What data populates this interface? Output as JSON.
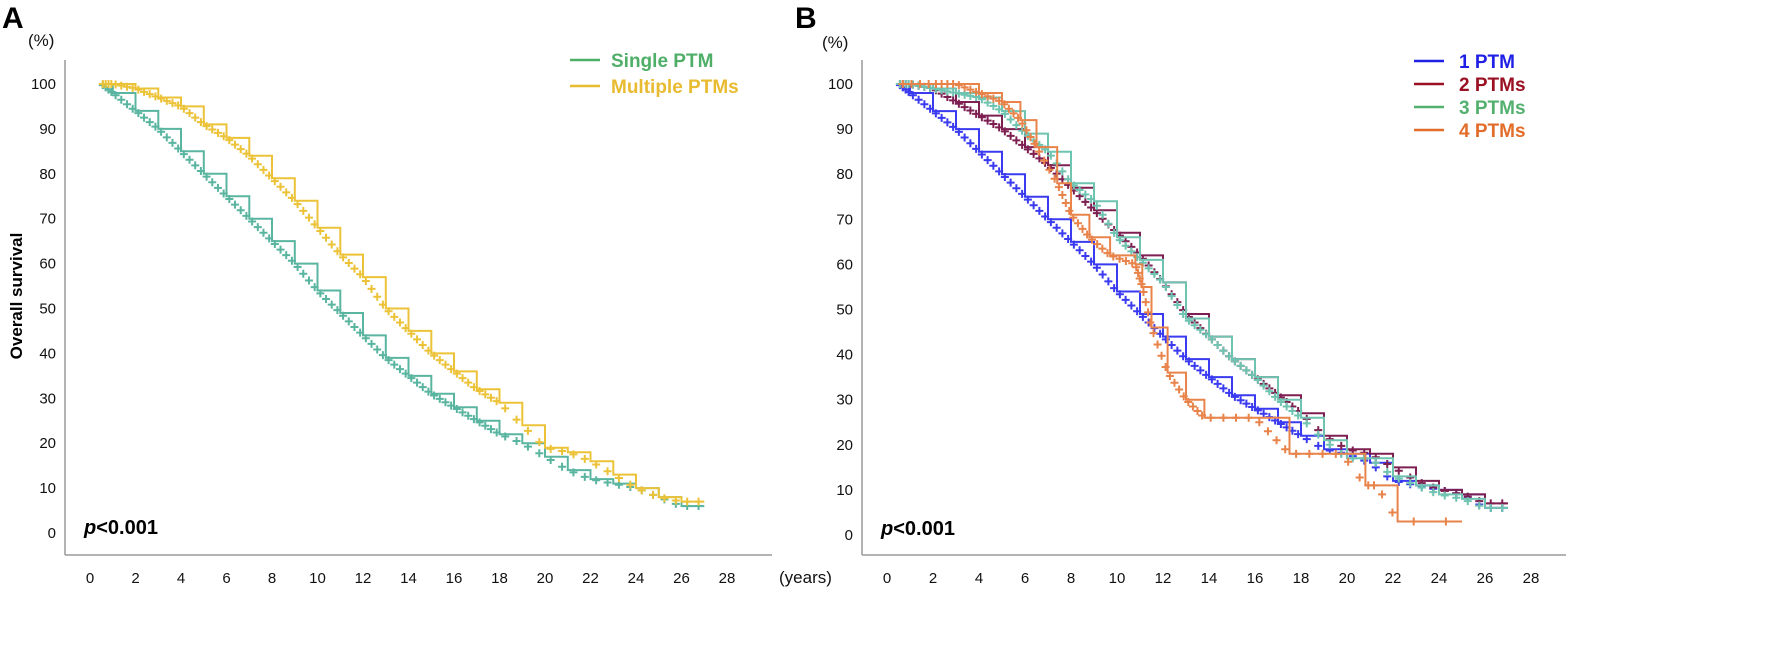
{
  "chart_data": [
    {
      "panel": "A",
      "type": "line",
      "ylabel": "Overall survival",
      "y_unit": "(%)",
      "x_unit": "(years)",
      "xlim": [
        0,
        28
      ],
      "ylim": [
        0,
        100
      ],
      "x_ticks": [
        "0",
        "2",
        "4",
        "6",
        "8",
        "10",
        "12",
        "14",
        "16",
        "18",
        "20",
        "22",
        "24",
        "26",
        "28"
      ],
      "y_ticks": [
        "0",
        "10",
        "20",
        "30",
        "40",
        "50",
        "60",
        "70",
        "80",
        "90",
        "100"
      ],
      "grid": false,
      "legend_position": "top-right",
      "p_value": {
        "p": "p",
        "rest": "<0.001"
      },
      "series": [
        {
          "name": "Single PTM",
          "color": "#5ab5a0",
          "legend_color": "#4fae68",
          "x": [
            0.5,
            1,
            2,
            3,
            4,
            5,
            6,
            7,
            8,
            9,
            10,
            11,
            12,
            13,
            14,
            15,
            16,
            17,
            18,
            19,
            20,
            21,
            22,
            23,
            24,
            25,
            26,
            27
          ],
          "y": [
            100,
            98,
            94,
            90,
            85,
            80,
            75,
            70,
            65,
            60,
            54,
            49,
            44,
            39,
            35,
            31,
            28,
            25,
            22,
            20,
            17,
            14,
            12,
            11,
            10,
            8,
            6,
            6
          ]
        },
        {
          "name": "Multiple PTMs",
          "color": "#ecc338",
          "legend_color": "#e8bb30",
          "x": [
            0.5,
            1,
            2,
            3,
            4,
            5,
            6,
            7,
            8,
            9,
            10,
            11,
            12,
            13,
            14,
            15,
            16,
            17,
            18,
            19,
            20,
            21,
            22,
            23,
            24,
            25,
            26,
            27
          ],
          "y": [
            100,
            100,
            99,
            97,
            95,
            91,
            88,
            84,
            79,
            74,
            68,
            62,
            57,
            50,
            45,
            40,
            36,
            32,
            29,
            24,
            19,
            18,
            16,
            13,
            10,
            8,
            7,
            7
          ]
        }
      ]
    },
    {
      "panel": "B",
      "type": "line",
      "ylabel": "",
      "y_unit": "(%)",
      "x_unit": "",
      "xlim": [
        0,
        28
      ],
      "ylim": [
        0,
        100
      ],
      "x_ticks": [
        "0",
        "2",
        "4",
        "6",
        "8",
        "10",
        "12",
        "14",
        "16",
        "18",
        "20",
        "22",
        "24",
        "26",
        "28"
      ],
      "y_ticks": [
        "0",
        "10",
        "20",
        "30",
        "40",
        "50",
        "60",
        "70",
        "80",
        "90",
        "100"
      ],
      "grid": false,
      "legend_position": "top-right",
      "p_value": {
        "p": "p",
        "rest": "<0.001"
      },
      "series": [
        {
          "name": "1 PTM",
          "color": "#3a3af0",
          "legend_color": "#1f1fe6",
          "x": [
            0.5,
            1,
            2,
            3,
            4,
            5,
            6,
            7,
            8,
            9,
            10,
            11,
            12,
            13,
            14,
            15,
            16,
            17,
            18,
            19,
            20,
            21,
            22,
            23,
            24,
            25,
            26,
            27
          ],
          "y": [
            100,
            98,
            94,
            90,
            85,
            80,
            75,
            70,
            65,
            60,
            54,
            49,
            44,
            39,
            35,
            31,
            28,
            25,
            22,
            19,
            18,
            16,
            12,
            11,
            10,
            9,
            6,
            6
          ]
        },
        {
          "name": "2 PTMs",
          "color": "#7e1f52",
          "legend_color": "#9b1124",
          "x": [
            0.5,
            1,
            2,
            3,
            4,
            5,
            6,
            7,
            8,
            9,
            10,
            11,
            12,
            13,
            14,
            15,
            16,
            17,
            18,
            19,
            20,
            21,
            22,
            23,
            24,
            25,
            26,
            27
          ],
          "y": [
            100,
            100,
            99,
            96,
            93,
            90,
            86,
            82,
            77,
            72,
            67,
            62,
            56,
            49,
            44,
            39,
            35,
            31,
            27,
            22,
            19,
            18,
            15,
            12,
            10,
            9,
            7,
            7
          ]
        },
        {
          "name": "3 PTMs",
          "color": "#6ec4b0",
          "legend_color": "#53b06f",
          "x": [
            0.5,
            1,
            2,
            3,
            4,
            5,
            6,
            7,
            8,
            9,
            10,
            11,
            12,
            13,
            14,
            15,
            16,
            17,
            18,
            19,
            20,
            21,
            22,
            23,
            24,
            25,
            26,
            27
          ],
          "y": [
            100,
            100,
            99,
            98,
            97,
            94,
            89,
            85,
            78,
            74,
            66,
            61,
            56,
            48,
            44,
            39,
            35,
            30,
            26,
            21,
            17,
            17,
            13,
            11,
            9,
            8,
            6,
            6
          ]
        },
        {
          "name": "4 PTMs",
          "color": "#e8834a",
          "legend_color": "#e26d2a",
          "x": [
            0.5,
            2,
            3,
            4,
            5,
            5.8,
            6.5,
            7.4,
            8,
            8.8,
            9.7,
            10.8,
            11.1,
            11.5,
            12.2,
            13,
            13.8,
            16,
            17.5,
            19.8,
            20.8,
            21.3,
            22.2,
            25
          ],
          "y": [
            100,
            100,
            100,
            98,
            96,
            92,
            86,
            78,
            71,
            66,
            62,
            60,
            55,
            46,
            36,
            30,
            26,
            26,
            18,
            18,
            11,
            11,
            3,
            3
          ]
        }
      ]
    }
  ]
}
